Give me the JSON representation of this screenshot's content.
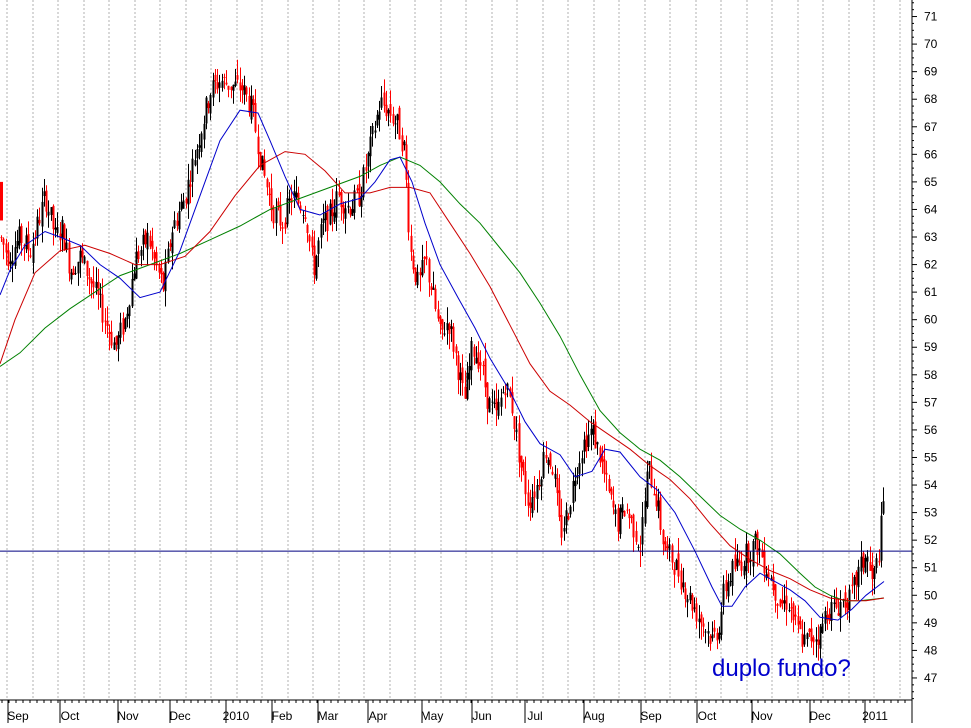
{
  "chart_data": {
    "type": "candlestick",
    "annotation": "duplo fundo?",
    "x_labels": [
      "Sep",
      "Oct",
      "Nov",
      "Dec",
      "2010",
      "Feb",
      "Mar",
      "Apr",
      "May",
      "Jun",
      "Jul",
      "Aug",
      "Sep",
      "Oct",
      "Nov",
      "Dec",
      "2011"
    ],
    "y_ticks": [
      47,
      48,
      49,
      50,
      51,
      52,
      53,
      54,
      55,
      56,
      57,
      58,
      59,
      60,
      61,
      62,
      63,
      64,
      65,
      66,
      67,
      68,
      69,
      70,
      71
    ],
    "ylim": [
      46.2,
      71.6
    ],
    "y_axis_position": "right",
    "grid": "vertical dashed",
    "horizontal_line": 51.6,
    "colors": {
      "up": "#000000",
      "down": "#ff0000",
      "ma_short": "#0000cc",
      "ma_medium": "#cc0000",
      "ma_long": "#008000",
      "support_line": "#000080",
      "annotation": "#0000cc",
      "grid": "#b0b0b0"
    },
    "price_path": [
      [
        0,
        63.0
      ],
      [
        8,
        62.3
      ],
      [
        20,
        63.0
      ],
      [
        30,
        62.5
      ],
      [
        45,
        64.5
      ],
      [
        55,
        63.0
      ],
      [
        62,
        63.3
      ],
      [
        70,
        61.8
      ],
      [
        80,
        62.3
      ],
      [
        92,
        61.3
      ],
      [
        105,
        60.0
      ],
      [
        115,
        59.0
      ],
      [
        125,
        60.0
      ],
      [
        135,
        62.2
      ],
      [
        148,
        63.0
      ],
      [
        155,
        62.0
      ],
      [
        163,
        61.2
      ],
      [
        172,
        63.3
      ],
      [
        185,
        64.5
      ],
      [
        198,
        66.5
      ],
      [
        210,
        68.3
      ],
      [
        220,
        68.7
      ],
      [
        230,
        68.5
      ],
      [
        242,
        68.4
      ],
      [
        252,
        67.6
      ],
      [
        262,
        65.5
      ],
      [
        272,
        64.0
      ],
      [
        282,
        63.5
      ],
      [
        292,
        64.5
      ],
      [
        305,
        64.0
      ],
      [
        313,
        61.8
      ],
      [
        322,
        63.4
      ],
      [
        330,
        63.8
      ],
      [
        338,
        64.5
      ],
      [
        348,
        64.1
      ],
      [
        358,
        64.4
      ],
      [
        365,
        65.4
      ],
      [
        372,
        66.6
      ],
      [
        380,
        67.9
      ],
      [
        390,
        67.5
      ],
      [
        398,
        67.0
      ],
      [
        404,
        66.2
      ],
      [
        410,
        62.5
      ],
      [
        418,
        61.2
      ],
      [
        425,
        62.2
      ],
      [
        432,
        61.0
      ],
      [
        440,
        59.4
      ],
      [
        448,
        60.0
      ],
      [
        456,
        58.6
      ],
      [
        464,
        57.0
      ],
      [
        472,
        59.0
      ],
      [
        480,
        58.5
      ],
      [
        488,
        57.0
      ],
      [
        496,
        56.5
      ],
      [
        505,
        57.7
      ],
      [
        512,
        56.8
      ],
      [
        520,
        54.8
      ],
      [
        528,
        53.4
      ],
      [
        537,
        54.0
      ],
      [
        545,
        55.3
      ],
      [
        553,
        54.6
      ],
      [
        560,
        52.2
      ],
      [
        568,
        53.1
      ],
      [
        576,
        54.7
      ],
      [
        583,
        55.5
      ],
      [
        592,
        56.0
      ],
      [
        600,
        55.0
      ],
      [
        608,
        53.7
      ],
      [
        617,
        52.6
      ],
      [
        625,
        53.2
      ],
      [
        633,
        52.5
      ],
      [
        640,
        51.8
      ],
      [
        648,
        54.7
      ],
      [
        656,
        53.5
      ],
      [
        664,
        51.7
      ],
      [
        672,
        51.3
      ],
      [
        680,
        50.7
      ],
      [
        688,
        50.0
      ],
      [
        696,
        49.4
      ],
      [
        704,
        48.9
      ],
      [
        712,
        48.4
      ],
      [
        718,
        48.8
      ],
      [
        724,
        50.2
      ],
      [
        732,
        50.9
      ],
      [
        740,
        51.2
      ],
      [
        748,
        51.6
      ],
      [
        756,
        51.9
      ],
      [
        764,
        51.2
      ],
      [
        772,
        50.5
      ],
      [
        780,
        49.7
      ],
      [
        788,
        49.8
      ],
      [
        796,
        48.8
      ],
      [
        804,
        48.3
      ],
      [
        812,
        48.5
      ],
      [
        820,
        48.6
      ],
      [
        826,
        49.5
      ],
      [
        834,
        49.5
      ],
      [
        842,
        49.8
      ],
      [
        850,
        49.8
      ],
      [
        858,
        50.8
      ],
      [
        866,
        51.5
      ],
      [
        872,
        50.4
      ],
      [
        878,
        51.4
      ],
      [
        883,
        53.3
      ]
    ],
    "ma_short_path": [
      [
        0,
        60.9
      ],
      [
        10,
        61.8
      ],
      [
        25,
        62.7
      ],
      [
        45,
        63.2
      ],
      [
        60,
        63.0
      ],
      [
        80,
        62.7
      ],
      [
        100,
        62.0
      ],
      [
        120,
        61.5
      ],
      [
        140,
        60.8
      ],
      [
        160,
        61.0
      ],
      [
        180,
        62.5
      ],
      [
        200,
        64.5
      ],
      [
        220,
        66.5
      ],
      [
        240,
        67.6
      ],
      [
        258,
        67.5
      ],
      [
        270,
        66.5
      ],
      [
        285,
        65.2
      ],
      [
        300,
        64.0
      ],
      [
        320,
        63.8
      ],
      [
        340,
        64.2
      ],
      [
        360,
        64.4
      ],
      [
        375,
        65.0
      ],
      [
        390,
        65.8
      ],
      [
        400,
        65.9
      ],
      [
        412,
        65.0
      ],
      [
        425,
        63.5
      ],
      [
        440,
        62.0
      ],
      [
        458,
        60.8
      ],
      [
        475,
        59.7
      ],
      [
        490,
        58.6
      ],
      [
        510,
        57.4
      ],
      [
        525,
        56.3
      ],
      [
        540,
        55.5
      ],
      [
        560,
        55.1
      ],
      [
        575,
        54.3
      ],
      [
        592,
        54.5
      ],
      [
        605,
        55.3
      ],
      [
        620,
        55.2
      ],
      [
        640,
        54.3
      ],
      [
        658,
        53.8
      ],
      [
        675,
        53.0
      ],
      [
        695,
        51.6
      ],
      [
        712,
        50.3
      ],
      [
        722,
        49.6
      ],
      [
        732,
        49.6
      ],
      [
        745,
        50.3
      ],
      [
        760,
        50.8
      ],
      [
        775,
        50.5
      ],
      [
        790,
        50.2
      ],
      [
        805,
        49.8
      ],
      [
        820,
        49.2
      ],
      [
        838,
        49.1
      ],
      [
        852,
        49.5
      ],
      [
        866,
        50.0
      ],
      [
        884,
        50.5
      ]
    ],
    "ma_medium_path": [
      [
        0,
        58.4
      ],
      [
        15,
        60.0
      ],
      [
        35,
        61.7
      ],
      [
        60,
        62.5
      ],
      [
        85,
        62.7
      ],
      [
        110,
        62.4
      ],
      [
        135,
        62.0
      ],
      [
        160,
        62.0
      ],
      [
        185,
        62.3
      ],
      [
        210,
        63.2
      ],
      [
        235,
        64.5
      ],
      [
        260,
        65.6
      ],
      [
        285,
        66.1
      ],
      [
        305,
        66.0
      ],
      [
        325,
        65.4
      ],
      [
        345,
        64.6
      ],
      [
        370,
        64.6
      ],
      [
        390,
        64.8
      ],
      [
        410,
        64.8
      ],
      [
        430,
        64.6
      ],
      [
        450,
        63.5
      ],
      [
        470,
        62.4
      ],
      [
        490,
        61.2
      ],
      [
        510,
        59.8
      ],
      [
        530,
        58.4
      ],
      [
        550,
        57.4
      ],
      [
        570,
        56.9
      ],
      [
        590,
        56.3
      ],
      [
        610,
        55.8
      ],
      [
        630,
        55.3
      ],
      [
        650,
        54.7
      ],
      [
        670,
        54.2
      ],
      [
        690,
        53.5
      ],
      [
        710,
        52.6
      ],
      [
        730,
        51.8
      ],
      [
        750,
        51.3
      ],
      [
        770,
        50.9
      ],
      [
        790,
        50.6
      ],
      [
        810,
        50.2
      ],
      [
        830,
        49.9
      ],
      [
        850,
        49.8
      ],
      [
        866,
        49.8
      ],
      [
        884,
        49.9
      ]
    ],
    "ma_long_path": [
      [
        0,
        58.3
      ],
      [
        20,
        58.8
      ],
      [
        45,
        59.7
      ],
      [
        70,
        60.4
      ],
      [
        95,
        61.0
      ],
      [
        120,
        61.6
      ],
      [
        150,
        62.0
      ],
      [
        180,
        62.4
      ],
      [
        210,
        62.9
      ],
      [
        240,
        63.4
      ],
      [
        270,
        64.0
      ],
      [
        300,
        64.4
      ],
      [
        330,
        64.8
      ],
      [
        360,
        65.2
      ],
      [
        380,
        65.6
      ],
      [
        400,
        65.9
      ],
      [
        420,
        65.6
      ],
      [
        440,
        65.0
      ],
      [
        460,
        64.2
      ],
      [
        480,
        63.5
      ],
      [
        500,
        62.6
      ],
      [
        520,
        61.7
      ],
      [
        540,
        60.6
      ],
      [
        560,
        59.4
      ],
      [
        580,
        58.0
      ],
      [
        600,
        56.7
      ],
      [
        620,
        55.9
      ],
      [
        640,
        55.3
      ],
      [
        660,
        54.9
      ],
      [
        680,
        54.3
      ],
      [
        700,
        53.6
      ],
      [
        720,
        52.9
      ],
      [
        740,
        52.4
      ],
      [
        760,
        52.0
      ],
      [
        780,
        51.5
      ],
      [
        800,
        50.8
      ],
      [
        815,
        50.3
      ],
      [
        830,
        50.0
      ],
      [
        845,
        49.8
      ],
      [
        860,
        49.8
      ],
      [
        884,
        49.9
      ]
    ]
  }
}
